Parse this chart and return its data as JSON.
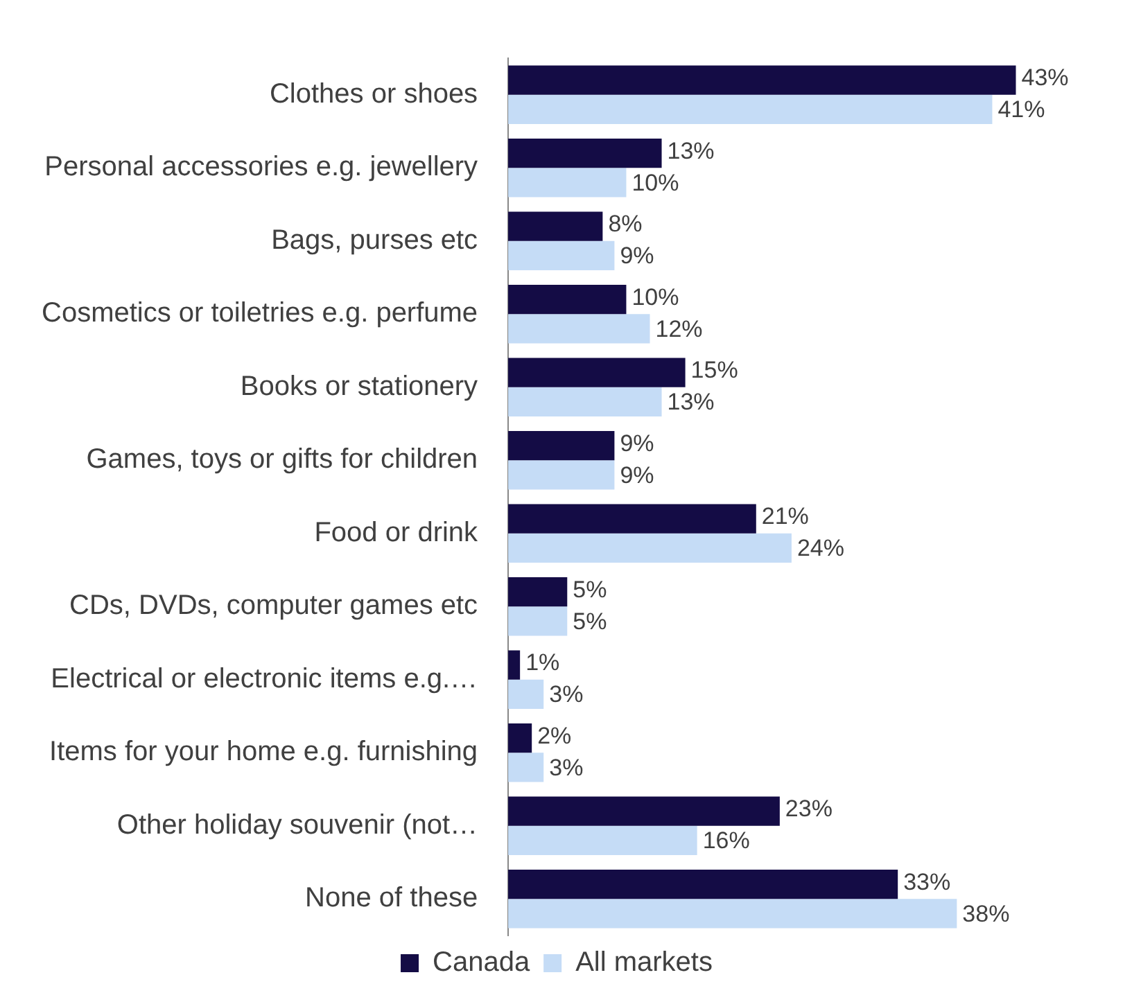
{
  "chart_data": {
    "type": "bar",
    "orientation": "horizontal",
    "categories": [
      "Clothes or shoes",
      "Personal accessories e.g. jewellery",
      "Bags, purses etc",
      "Cosmetics or toiletries e.g. perfume",
      "Books or stationery",
      "Games, toys or gifts for children",
      "Food or drink",
      "CDs, DVDs, computer games etc",
      "Electrical or electronic items e.g.…",
      "Items for your home e.g. furnishing",
      "Other holiday souvenir (not…",
      "None of these"
    ],
    "series": [
      {
        "name": "Canada",
        "color": "#140c45",
        "values": [
          43,
          13,
          8,
          10,
          15,
          9,
          21,
          5,
          1,
          2,
          23,
          33
        ],
        "value_labels": [
          "43%",
          "13%",
          "8%",
          "10%",
          "15%",
          "9%",
          "21%",
          "5%",
          "1%",
          "2%",
          "23%",
          "33%"
        ]
      },
      {
        "name": "All markets",
        "color": "#c5dcf6",
        "values": [
          41,
          10,
          9,
          12,
          13,
          9,
          24,
          5,
          3,
          3,
          16,
          38
        ],
        "value_labels": [
          "41%",
          "10%",
          "9%",
          "12%",
          "13%",
          "9%",
          "24%",
          "5%",
          "3%",
          "3%",
          "16%",
          "38%"
        ]
      }
    ],
    "legend": "bottom"
  }
}
